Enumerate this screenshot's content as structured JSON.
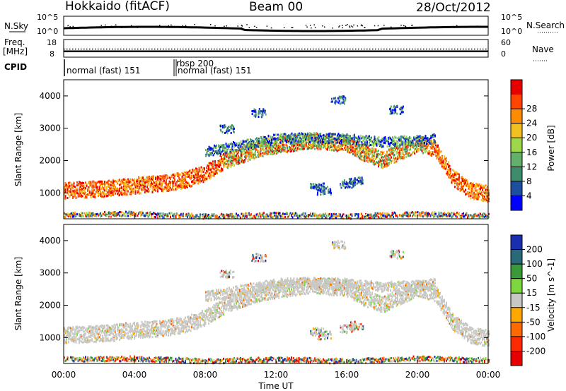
{
  "header": {
    "station": "Hokkaido (fitACF)",
    "beam": "Beam 00",
    "date": "28/Oct/2012"
  },
  "noise_panel": {
    "left_label": "N.Sky",
    "right_label": "N.Search",
    "left_ticks": [
      "10^5",
      "10^0"
    ],
    "right_ticks": [
      "10^5",
      "10^0"
    ]
  },
  "freq_panel": {
    "left_label_1": "Freq.",
    "left_label_2": "[MHz]",
    "right_label": "Nave",
    "left_ticks": [
      "18",
      "8"
    ],
    "right_ticks": [
      "60",
      "0"
    ],
    "freq_mhz": 11.0,
    "nave": 27
  },
  "cpid_panel": {
    "label": "CPID",
    "entries": [
      {
        "text": "normal (fast) 151",
        "start_hour": 0.0
      },
      {
        "text": "rbsp 200",
        "start_hour": 6.15
      },
      {
        "text": "normal (fast) 151",
        "start_hour": 6.25
      }
    ]
  },
  "axes": {
    "ylabel": "Slant Range [km]",
    "xlabel": "Time UT",
    "x_ticks": [
      "00:00",
      "04:00",
      "08:00",
      "12:00",
      "16:00",
      "20:00",
      "00:00"
    ],
    "y_ticks": [
      "1000",
      "2000",
      "3000",
      "4000"
    ]
  },
  "power_colorbar": {
    "label": "Power [dB]",
    "ticks": [
      "4",
      "8",
      "12",
      "16",
      "20",
      "24",
      "28"
    ],
    "colors": [
      "#0000ff",
      "#1c4fa0",
      "#3f8c6c",
      "#62b06a",
      "#9ed84a",
      "#f2c020",
      "#ff8c00",
      "#ff4500",
      "#e60000"
    ]
  },
  "velocity_colorbar": {
    "label": "Velocity [m s^-1]",
    "ticks": [
      "200",
      "100",
      "50",
      "15",
      "-15",
      "-50",
      "-100",
      "-200"
    ],
    "colors": [
      "#1a2fb0",
      "#2a6a78",
      "#3a9a3a",
      "#7cd83c",
      "#c8c8c4",
      "#ffa800",
      "#ff6a00",
      "#ff2a00",
      "#e60000"
    ]
  },
  "chart_data": {
    "type": "heatmap",
    "x_unit": "hour UT",
    "xlim": [
      0,
      24
    ],
    "ylim": [
      200,
      4500
    ],
    "scatter_bands": [
      {
        "name": "main echo",
        "points": [
          [
            0,
            1100
          ],
          [
            2,
            1150
          ],
          [
            4,
            1250
          ],
          [
            6,
            1350
          ],
          [
            7,
            1450
          ],
          [
            8,
            1650
          ],
          [
            9,
            2000
          ],
          [
            10,
            2200
          ],
          [
            11,
            2400
          ],
          [
            12,
            2500
          ],
          [
            14,
            2650
          ],
          [
            16,
            2550
          ],
          [
            17,
            2250
          ],
          [
            18,
            2050
          ],
          [
            19,
            2300
          ],
          [
            20,
            2550
          ],
          [
            21,
            2400
          ],
          [
            22,
            1500
          ],
          [
            23,
            1100
          ],
          [
            24,
            1000
          ]
        ],
        "width_km": 500
      },
      {
        "name": "upper echo",
        "points": [
          [
            8,
            2300
          ],
          [
            10,
            2500
          ],
          [
            12,
            2700
          ],
          [
            14,
            2750
          ],
          [
            16,
            2700
          ],
          [
            18,
            2600
          ],
          [
            20,
            2650
          ],
          [
            21,
            2700
          ]
        ],
        "width_km": 300
      },
      {
        "name": "near range",
        "points": [
          [
            0,
            350
          ],
          [
            4,
            380
          ],
          [
            8,
            300
          ],
          [
            12,
            350
          ],
          [
            16,
            300
          ],
          [
            20,
            380
          ],
          [
            24,
            330
          ]
        ],
        "width_km": 150
      },
      {
        "name": "mid blobs",
        "points": [
          [
            14.3,
            1200
          ],
          [
            14.7,
            1100
          ],
          [
            16.0,
            1300
          ],
          [
            16.5,
            1400
          ]
        ],
        "width_km": 250
      },
      {
        "name": "high blobs",
        "points": [
          [
            9.2,
            3000
          ],
          [
            11.0,
            3500
          ],
          [
            15.5,
            3900
          ],
          [
            18.8,
            3600
          ]
        ],
        "width_km": 250
      }
    ]
  }
}
